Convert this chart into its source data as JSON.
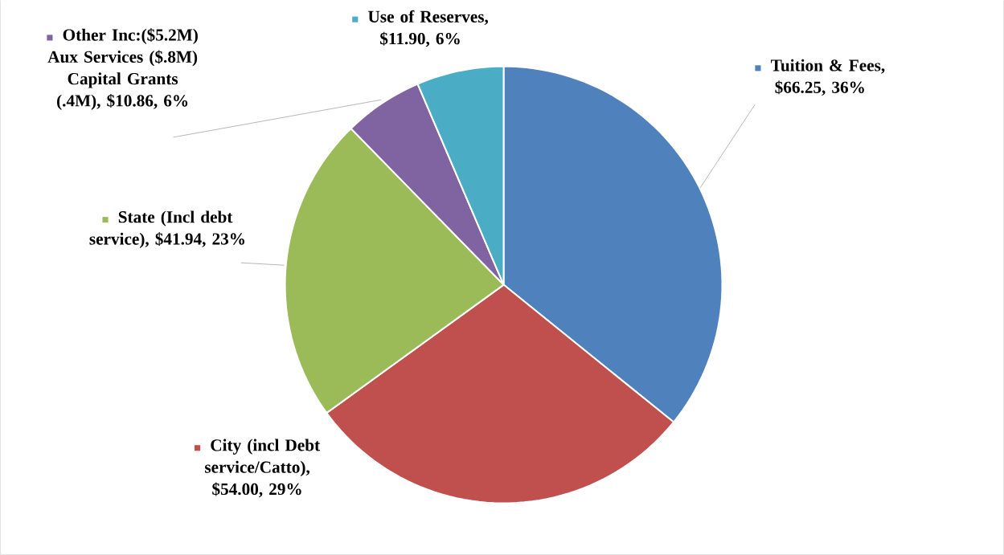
{
  "chart_data": {
    "type": "pie",
    "categories": [
      "Tuition & Fees",
      "City (incl Debt service/Catto)",
      "State (Incl debt service)",
      "Other Inc:($5.2M) Aux Services ($.8M) Capital Grants (.4M)",
      "Use of Reserves"
    ],
    "values": [
      66.25,
      54.0,
      41.94,
      10.86,
      11.9
    ],
    "value_labels": [
      ", $66.25, 36%",
      ", $54.00, 29%",
      ", $41.94, 23%",
      ", $10.86, 6%",
      ", $11.90, 6%"
    ],
    "legend": "top",
    "colors": [
      "#4f81bd",
      "#c0504d",
      "#9bbb59",
      "#8064a2",
      "#4bacc6"
    ]
  }
}
